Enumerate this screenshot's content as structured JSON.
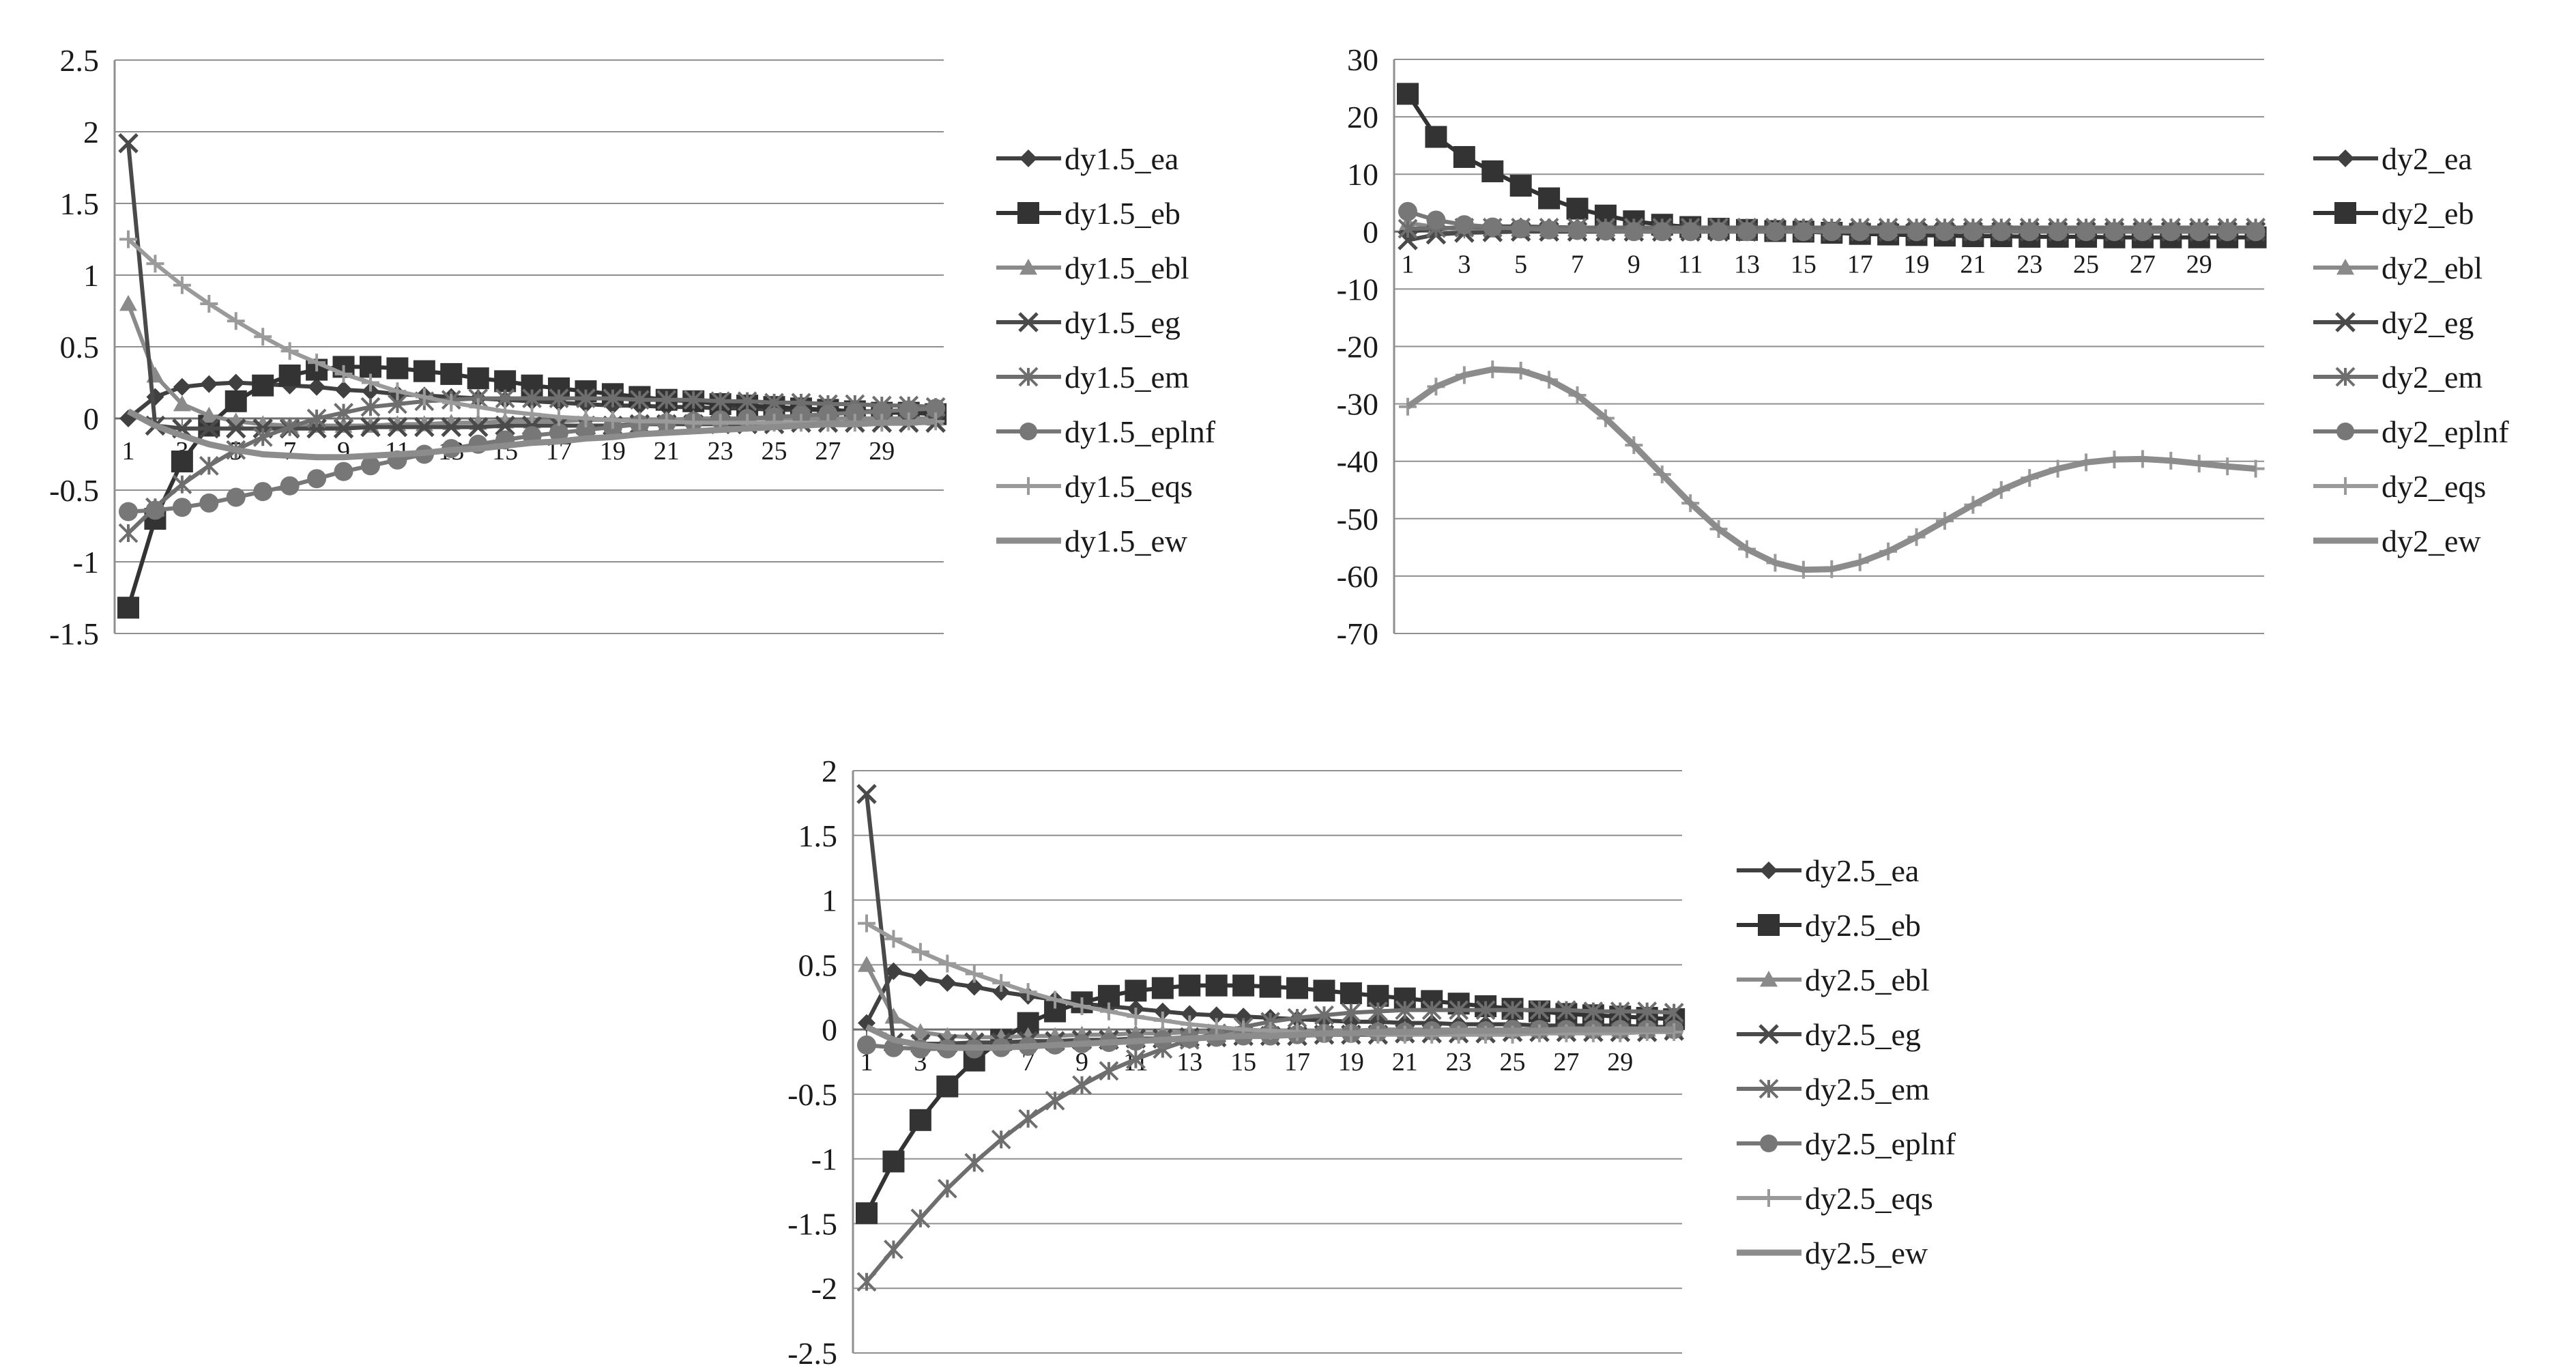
{
  "chart_data": [
    {
      "type": "line",
      "ylim": [
        -1.5,
        2.5
      ],
      "yticks": [
        "2.5",
        "2",
        "1.5",
        "1",
        "0.5",
        "0",
        "-0.5",
        "-1",
        "-1.5"
      ],
      "xticks": [
        "1",
        "3",
        "5",
        "7",
        "9",
        "11",
        "13",
        "15",
        "17",
        "19",
        "21",
        "23",
        "25",
        "27",
        "29"
      ],
      "grid": true,
      "legend": "right",
      "series": [
        {
          "name": "dy1.5_ea",
          "marker": "diamond",
          "color": "#404040",
          "values": [
            0,
            0.15,
            0.22,
            0.24,
            0.25,
            0.24,
            0.23,
            0.22,
            0.2,
            0.19,
            0.17,
            0.16,
            0.15,
            0.14,
            0.13,
            0.12,
            0.11,
            0.1,
            0.09,
            0.09,
            0.08,
            0.08,
            0.07,
            0.07,
            0.06,
            0.06,
            0.06,
            0.05,
            0.05,
            0.05,
            0.05
          ]
        },
        {
          "name": "dy1.5_eb",
          "marker": "square",
          "color": "#333333",
          "values": [
            -1.32,
            -0.7,
            -0.3,
            -0.05,
            0.12,
            0.23,
            0.3,
            0.34,
            0.36,
            0.36,
            0.35,
            0.33,
            0.31,
            0.28,
            0.26,
            0.23,
            0.21,
            0.19,
            0.17,
            0.15,
            0.13,
            0.12,
            0.1,
            0.09,
            0.08,
            0.07,
            0.06,
            0.05,
            0.04,
            0.04,
            0.03
          ]
        },
        {
          "name": "dy1.5_ebl",
          "marker": "triangle",
          "color": "#8a8a8a",
          "values": [
            0.8,
            0.3,
            0.1,
            0.02,
            -0.02,
            -0.04,
            -0.05,
            -0.05,
            -0.05,
            -0.05,
            -0.04,
            -0.04,
            -0.03,
            -0.03,
            -0.02,
            -0.02,
            -0.02,
            -0.01,
            -0.01,
            -0.01,
            -0.01,
            0,
            0,
            0,
            0,
            0,
            0,
            0,
            0,
            0,
            0
          ]
        },
        {
          "name": "dy1.5_eg",
          "marker": "x",
          "color": "#4a4a4a",
          "values": [
            1.92,
            -0.05,
            -0.07,
            -0.07,
            -0.07,
            -0.07,
            -0.07,
            -0.07,
            -0.07,
            -0.06,
            -0.06,
            -0.06,
            -0.06,
            -0.06,
            -0.05,
            -0.05,
            -0.05,
            -0.05,
            -0.05,
            -0.04,
            -0.04,
            -0.04,
            -0.04,
            -0.04,
            -0.04,
            -0.03,
            -0.03,
            -0.03,
            -0.03,
            -0.03,
            -0.03
          ]
        },
        {
          "name": "dy1.5_em",
          "marker": "star",
          "color": "#6e6e6e",
          "values": [
            -0.8,
            -0.62,
            -0.46,
            -0.33,
            -0.22,
            -0.13,
            -0.06,
            0,
            0.04,
            0.08,
            0.1,
            0.12,
            0.13,
            0.14,
            0.14,
            0.14,
            0.14,
            0.14,
            0.14,
            0.13,
            0.13,
            0.13,
            0.12,
            0.12,
            0.11,
            0.11,
            0.1,
            0.1,
            0.09,
            0.09,
            0.08
          ]
        },
        {
          "name": "dy1.5_eplnf",
          "marker": "circle",
          "color": "#777777",
          "values": [
            -0.65,
            -0.64,
            -0.62,
            -0.59,
            -0.55,
            -0.51,
            -0.47,
            -0.42,
            -0.37,
            -0.33,
            -0.29,
            -0.25,
            -0.21,
            -0.18,
            -0.15,
            -0.12,
            -0.1,
            -0.08,
            -0.06,
            -0.04,
            -0.03,
            -0.02,
            -0.01,
            0,
            0.01,
            0.02,
            0.03,
            0.04,
            0.05,
            0.06,
            0.07
          ]
        },
        {
          "name": "dy1.5_eqs",
          "marker": "plus",
          "color": "#9a9a9a",
          "values": [
            1.25,
            1.08,
            0.93,
            0.8,
            0.68,
            0.57,
            0.47,
            0.39,
            0.31,
            0.25,
            0.19,
            0.15,
            0.11,
            0.08,
            0.05,
            0.03,
            0.01,
            0,
            -0.01,
            -0.02,
            -0.02,
            -0.03,
            -0.03,
            -0.03,
            -0.03,
            -0.03,
            -0.03,
            -0.03,
            -0.03,
            -0.02,
            -0.02
          ]
        },
        {
          "name": "dy1.5_ew",
          "marker": "none",
          "color": "#8c8c8c",
          "values": [
            0.05,
            -0.05,
            -0.12,
            -0.18,
            -0.22,
            -0.25,
            -0.26,
            -0.27,
            -0.27,
            -0.26,
            -0.25,
            -0.24,
            -0.22,
            -0.21,
            -0.19,
            -0.17,
            -0.16,
            -0.14,
            -0.13,
            -0.11,
            -0.1,
            -0.09,
            -0.08,
            -0.07,
            -0.06,
            -0.05,
            -0.04,
            -0.04,
            -0.03,
            -0.03,
            -0.02
          ]
        }
      ]
    },
    {
      "type": "line",
      "ylim": [
        -70,
        30
      ],
      "yticks": [
        "30",
        "20",
        "10",
        "0",
        "-10",
        "-20",
        "-30",
        "-40",
        "-50",
        "-60",
        "-70"
      ],
      "xticks": [
        "1",
        "3",
        "5",
        "7",
        "9",
        "11",
        "13",
        "15",
        "17",
        "19",
        "21",
        "23",
        "25",
        "27",
        "29"
      ],
      "grid": true,
      "legend": "right",
      "series": [
        {
          "name": "dy2_ea",
          "marker": "diamond",
          "color": "#404040",
          "values": [
            0,
            0.5,
            0.8,
            0.9,
            0.9,
            0.8,
            0.7,
            0.6,
            0.5,
            0.4,
            0.3,
            0.2,
            0.2,
            0.1,
            0.1,
            0.1,
            0,
            0,
            0,
            0,
            0,
            0,
            0,
            0,
            0,
            0,
            0,
            0,
            0,
            0,
            0
          ]
        },
        {
          "name": "dy2_eb",
          "marker": "square",
          "color": "#333333",
          "values": [
            24,
            16.5,
            13,
            10.5,
            8,
            5.8,
            4,
            2.8,
            1.8,
            1.2,
            0.8,
            0.5,
            0.3,
            0.1,
            0,
            -0.2,
            -0.4,
            -0.5,
            -0.6,
            -0.7,
            -0.8,
            -0.8,
            -0.9,
            -0.9,
            -0.9,
            -1,
            -1,
            -1,
            -1,
            -1,
            -1
          ]
        },
        {
          "name": "dy2_ebl",
          "marker": "triangle",
          "color": "#8a8a8a",
          "values": [
            1.5,
            0.8,
            0.4,
            0.2,
            0.1,
            0,
            0,
            0,
            0,
            0,
            0,
            0,
            0,
            0,
            0,
            0,
            0,
            0,
            0,
            0,
            0,
            0,
            0,
            0,
            0,
            0,
            0,
            0,
            0,
            0,
            0
          ]
        },
        {
          "name": "dy2_eg",
          "marker": "x",
          "color": "#4a4a4a",
          "values": [
            -1.5,
            -0.5,
            -0.2,
            -0.1,
            0,
            0,
            0,
            0,
            0,
            0,
            0,
            0,
            0,
            0,
            0,
            0,
            0,
            0,
            0,
            0,
            0,
            0,
            0,
            0,
            0,
            0,
            0,
            0,
            0,
            0,
            0
          ]
        },
        {
          "name": "dy2_em",
          "marker": "star",
          "color": "#6e6e6e",
          "values": [
            0.5,
            0.6,
            0.7,
            0.7,
            0.7,
            0.7,
            0.7,
            0.7,
            0.7,
            0.7,
            0.7,
            0.7,
            0.7,
            0.7,
            0.7,
            0.7,
            0.7,
            0.7,
            0.7,
            0.7,
            0.7,
            0.7,
            0.7,
            0.7,
            0.7,
            0.7,
            0.7,
            0.7,
            0.7,
            0.7,
            0.7
          ]
        },
        {
          "name": "dy2_eplnf",
          "marker": "circle",
          "color": "#777777",
          "values": [
            3.5,
            2,
            1.2,
            0.8,
            0.5,
            0.3,
            0.2,
            0.1,
            0,
            0,
            0,
            0,
            0,
            0,
            0,
            0,
            0,
            0,
            0,
            0,
            0,
            0,
            0,
            0,
            0,
            0,
            0,
            0,
            0,
            0,
            0
          ]
        },
        {
          "name": "dy2_eqs",
          "marker": "plus",
          "color": "#9a9a9a",
          "values": [
            -30.5,
            -27,
            -25,
            -24,
            -24.2,
            -25.8,
            -28.5,
            -32.5,
            -37.2,
            -42.3,
            -47.3,
            -51.8,
            -55.3,
            -57.7,
            -58.9,
            -58.8,
            -57.6,
            -55.7,
            -53.2,
            -50.4,
            -47.6,
            -45,
            -42.9,
            -41.3,
            -40.2,
            -39.7,
            -39.6,
            -39.9,
            -40.4,
            -40.9,
            -41.3
          ]
        },
        {
          "name": "dy2_ew",
          "marker": "none",
          "color": "#8c8c8c",
          "values": [
            -30.5,
            -27,
            -25,
            -24,
            -24.2,
            -25.8,
            -28.5,
            -32.5,
            -37.2,
            -42.3,
            -47.3,
            -51.8,
            -55.3,
            -57.7,
            -58.9,
            -58.8,
            -57.6,
            -55.7,
            -53.2,
            -50.4,
            -47.6,
            -45,
            -42.9,
            -41.3,
            -40.2,
            -39.7,
            -39.6,
            -39.9,
            -40.4,
            -40.9,
            -41.3
          ]
        }
      ]
    },
    {
      "type": "line",
      "ylim": [
        -2.5,
        2
      ],
      "yticks": [
        "2",
        "1.5",
        "1",
        "0.5",
        "0",
        "-0.5",
        "-1",
        "-1.5",
        "-2",
        "-2.5"
      ],
      "xticks": [
        "1",
        "3",
        "5",
        "7",
        "9",
        "11",
        "13",
        "15",
        "17",
        "19",
        "21",
        "23",
        "25",
        "27",
        "29"
      ],
      "grid": true,
      "legend": "right",
      "series": [
        {
          "name": "dy2.5_ea",
          "marker": "diamond",
          "color": "#404040",
          "values": [
            0.05,
            0.45,
            0.4,
            0.36,
            0.33,
            0.29,
            0.26,
            0.23,
            0.2,
            0.18,
            0.16,
            0.14,
            0.12,
            0.11,
            0.1,
            0.09,
            0.08,
            0.07,
            0.06,
            0.06,
            0.05,
            0.05,
            0.04,
            0.04,
            0.04,
            0.03,
            0.03,
            0.03,
            0.03,
            0.02,
            0.02
          ]
        },
        {
          "name": "dy2.5_eb",
          "marker": "square",
          "color": "#333333",
          "values": [
            -1.42,
            -1.02,
            -0.7,
            -0.44,
            -0.24,
            -0.08,
            0.05,
            0.14,
            0.21,
            0.26,
            0.3,
            0.32,
            0.34,
            0.34,
            0.34,
            0.33,
            0.32,
            0.3,
            0.28,
            0.26,
            0.24,
            0.22,
            0.2,
            0.18,
            0.16,
            0.14,
            0.12,
            0.11,
            0.1,
            0.09,
            0.08
          ]
        },
        {
          "name": "dy2.5_ebl",
          "marker": "triangle",
          "color": "#8a8a8a",
          "values": [
            0.5,
            0.1,
            -0.02,
            -0.05,
            -0.06,
            -0.06,
            -0.05,
            -0.05,
            -0.04,
            -0.04,
            -0.03,
            -0.03,
            -0.02,
            -0.02,
            -0.02,
            -0.01,
            -0.01,
            -0.01,
            -0.01,
            0,
            0,
            0,
            0,
            0,
            0,
            0,
            0,
            0,
            0,
            0,
            0
          ]
        },
        {
          "name": "dy2.5_eg",
          "marker": "x",
          "color": "#4a4a4a",
          "values": [
            1.82,
            -0.1,
            -0.11,
            -0.11,
            -0.1,
            -0.1,
            -0.09,
            -0.09,
            -0.08,
            -0.08,
            -0.07,
            -0.07,
            -0.06,
            -0.06,
            -0.05,
            -0.05,
            -0.05,
            -0.04,
            -0.04,
            -0.04,
            -0.03,
            -0.03,
            -0.03,
            -0.03,
            -0.02,
            -0.02,
            -0.02,
            -0.02,
            -0.02,
            -0.02,
            -0.01
          ]
        },
        {
          "name": "dy2.5_em",
          "marker": "star",
          "color": "#6e6e6e",
          "values": [
            -1.95,
            -1.7,
            -1.46,
            -1.23,
            -1.03,
            -0.85,
            -0.69,
            -0.55,
            -0.43,
            -0.32,
            -0.23,
            -0.15,
            -0.08,
            -0.03,
            0.02,
            0.06,
            0.09,
            0.11,
            0.13,
            0.14,
            0.15,
            0.15,
            0.15,
            0.15,
            0.15,
            0.15,
            0.15,
            0.14,
            0.14,
            0.14,
            0.13
          ]
        },
        {
          "name": "dy2.5_eplnf",
          "marker": "circle",
          "color": "#777777",
          "values": [
            -0.12,
            -0.14,
            -0.15,
            -0.15,
            -0.15,
            -0.14,
            -0.13,
            -0.12,
            -0.11,
            -0.1,
            -0.09,
            -0.08,
            -0.07,
            -0.06,
            -0.05,
            -0.05,
            -0.04,
            -0.03,
            -0.03,
            -0.02,
            -0.02,
            -0.01,
            -0.01,
            -0.01,
            0,
            0,
            0,
            0,
            0,
            0,
            0
          ]
        },
        {
          "name": "dy2.5_eqs",
          "marker": "plus",
          "color": "#9a9a9a",
          "values": [
            0.82,
            0.7,
            0.6,
            0.51,
            0.43,
            0.36,
            0.29,
            0.23,
            0.18,
            0.14,
            0.1,
            0.07,
            0.04,
            0.02,
            0,
            -0.01,
            -0.02,
            -0.03,
            -0.03,
            -0.04,
            -0.04,
            -0.04,
            -0.04,
            -0.04,
            -0.04,
            -0.03,
            -0.03,
            -0.03,
            -0.03,
            -0.02,
            -0.02
          ]
        },
        {
          "name": "dy2.5_ew",
          "marker": "none",
          "color": "#8c8c8c",
          "values": [
            0.02,
            -0.08,
            -0.12,
            -0.14,
            -0.14,
            -0.14,
            -0.13,
            -0.12,
            -0.11,
            -0.1,
            -0.09,
            -0.08,
            -0.07,
            -0.06,
            -0.05,
            -0.05,
            -0.04,
            -0.03,
            -0.03,
            -0.02,
            -0.02,
            -0.02,
            -0.01,
            -0.01,
            -0.01,
            -0.01,
            0,
            0,
            0,
            0,
            0
          ]
        }
      ]
    }
  ]
}
